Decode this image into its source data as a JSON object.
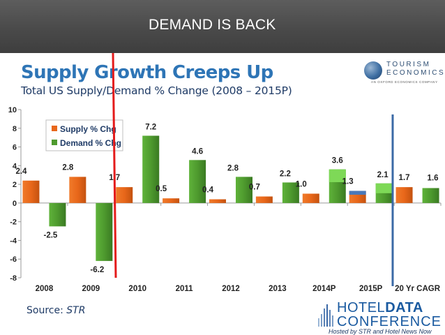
{
  "slide": {
    "banner_title": "DEMAND IS BACK",
    "source_label": "Source: ",
    "source_name": "STR"
  },
  "logo": {
    "line1": "TOURISM",
    "line2": "ECONOMICS",
    "line3": "AN OXFORD ECONOMICS COMPANY"
  },
  "conference": {
    "word1": "HOTEL",
    "word2": "DATA",
    "word3": "CONFERENCE",
    "tagline": "Hosted by STR and Hotel News Now"
  },
  "colors": {
    "supply": "#e8671a",
    "demand": "#4e9a2e",
    "supply_2015_top": "#4a78b8",
    "demand_2014_top": "#7ed957",
    "title": "#2e75b6",
    "red_line": "#e41b1b",
    "blue_line": "#3b6aa6"
  },
  "chart_data": {
    "type": "bar",
    "title": "Supply Growth Creeps Up",
    "subtitle": "Total US Supply/Demand % Change (2008 – 2015P)",
    "xlabel": "",
    "ylabel": "",
    "ylim": [
      -8,
      10
    ],
    "yticks": [
      10,
      8,
      6,
      4,
      2,
      0,
      -2,
      -4,
      -6,
      -8
    ],
    "grid": false,
    "legend_position": "top-left",
    "categories": [
      "2008",
      "2009",
      "2010",
      "2011",
      "2012",
      "2013",
      "2014P",
      "2015P",
      "20 Yr CAGR"
    ],
    "series": [
      {
        "name": "Supply % Chg",
        "values": [
          2.4,
          2.8,
          1.7,
          0.5,
          0.4,
          0.7,
          1.0,
          1.3,
          1.7
        ],
        "labels": [
          "2.4",
          "2.8",
          "1.7",
          "0.5",
          "0.4",
          "0.7",
          "1.0",
          "1.3",
          "1.7"
        ]
      },
      {
        "name": "Demand % Chg",
        "values": [
          -2.5,
          -6.2,
          7.2,
          4.6,
          2.8,
          2.2,
          3.6,
          2.1,
          1.6
        ],
        "labels": [
          "-2.5",
          "-6.2",
          "7.2",
          "4.6",
          "2.8",
          "2.2",
          "3.6",
          "2.1",
          "1.6"
        ]
      }
    ]
  }
}
